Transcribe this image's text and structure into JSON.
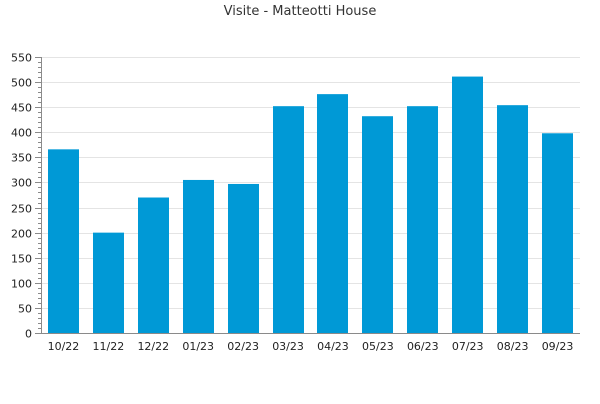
{
  "chart_data": {
    "type": "bar",
    "title": "Visite - Matteotti House",
    "xlabel": "",
    "ylabel": "",
    "categories": [
      "10/22",
      "11/22",
      "12/22",
      "01/23",
      "02/23",
      "03/23",
      "04/23",
      "05/23",
      "06/23",
      "07/23",
      "08/23",
      "09/23"
    ],
    "values": [
      366,
      200,
      270,
      305,
      297,
      452,
      476,
      432,
      452,
      511,
      454,
      398
    ],
    "ylim": [
      0,
      550
    ],
    "yticks": [
      0,
      50,
      100,
      150,
      200,
      250,
      300,
      350,
      400,
      450,
      500,
      550
    ],
    "grid": true,
    "legend": "none",
    "bar_color": "#0099d6"
  }
}
